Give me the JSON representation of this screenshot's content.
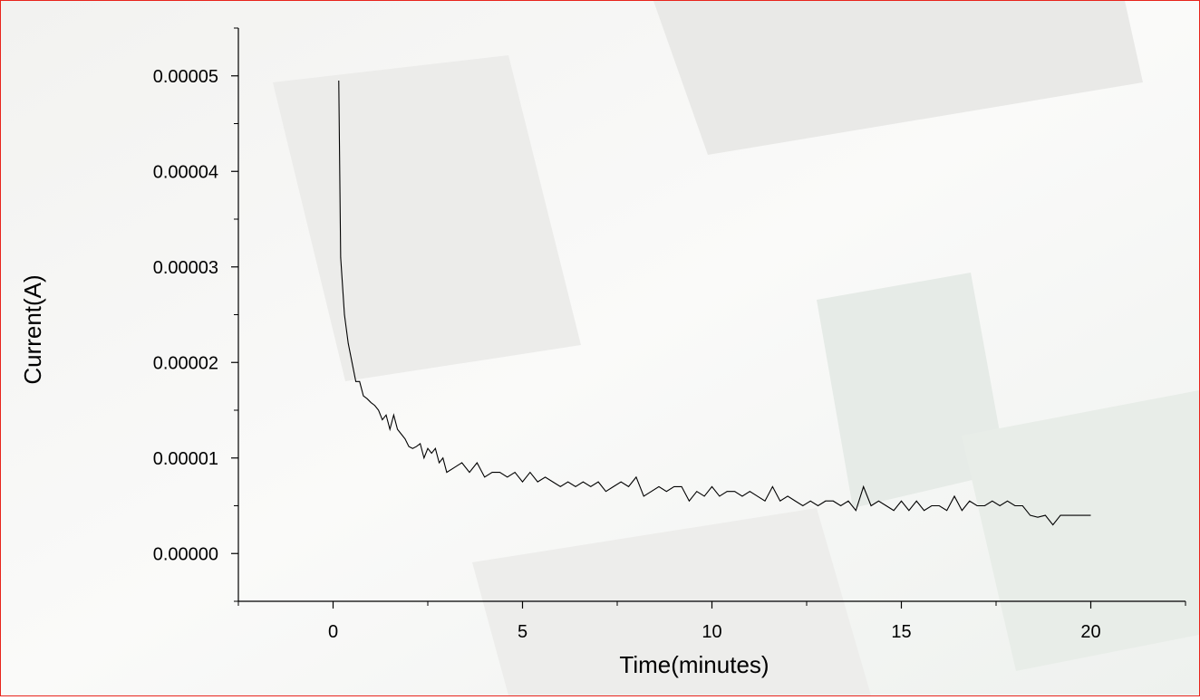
{
  "chart_data": {
    "type": "line",
    "x_label": "Time(minutes)",
    "y_label": "Current(A)",
    "xlim": [
      -2.5,
      22.5
    ],
    "xticks": [
      0,
      5,
      10,
      15,
      20
    ],
    "x_minor_ticks": [
      -2.5,
      2.5,
      7.5,
      12.5,
      17.5,
      22.5
    ],
    "ylim": [
      -5e-06,
      5.5e-05
    ],
    "yticks": [
      {
        "value": 0,
        "label": "0.00000"
      },
      {
        "value": 1e-05,
        "label": "0.00001"
      },
      {
        "value": 2e-05,
        "label": "0.00002"
      },
      {
        "value": 3e-05,
        "label": "0.00003"
      },
      {
        "value": 4e-05,
        "label": "0.00004"
      },
      {
        "value": 5e-05,
        "label": "0.00005"
      }
    ],
    "y_minor_ticks": [
      -5e-06,
      5e-06,
      1.5e-05,
      2.5e-05,
      3.5e-05,
      4.5e-05,
      5.5e-05
    ],
    "grid": false,
    "series": [
      {
        "color": "#000000",
        "x": [
          0.15,
          0.2,
          0.3,
          0.4,
          0.5,
          0.6,
          0.7,
          0.8,
          0.9,
          1.0,
          1.1,
          1.2,
          1.3,
          1.4,
          1.5,
          1.6,
          1.7,
          1.8,
          1.9,
          2.0,
          2.1,
          2.2,
          2.3,
          2.4,
          2.5,
          2.6,
          2.7,
          2.8,
          2.9,
          3.0,
          3.2,
          3.4,
          3.6,
          3.8,
          4.0,
          4.2,
          4.4,
          4.6,
          4.8,
          5.0,
          5.2,
          5.4,
          5.6,
          5.8,
          6.0,
          6.2,
          6.4,
          6.6,
          6.8,
          7.0,
          7.2,
          7.4,
          7.6,
          7.8,
          8.0,
          8.2,
          8.4,
          8.6,
          8.8,
          9.0,
          9.2,
          9.4,
          9.6,
          9.8,
          10.0,
          10.2,
          10.4,
          10.6,
          10.8,
          11.0,
          11.2,
          11.4,
          11.6,
          11.8,
          12.0,
          12.2,
          12.4,
          12.6,
          12.8,
          13.0,
          13.2,
          13.4,
          13.6,
          13.8,
          14.0,
          14.2,
          14.4,
          14.6,
          14.8,
          15.0,
          15.2,
          15.4,
          15.6,
          15.8,
          16.0,
          16.2,
          16.4,
          16.6,
          16.8,
          17.0,
          17.2,
          17.4,
          17.6,
          17.8,
          18.0,
          18.2,
          18.4,
          18.6,
          18.8,
          19.0,
          19.2,
          19.4,
          19.6,
          19.8,
          20.0
        ],
        "values": [
          4.95e-05,
          3.1e-05,
          2.5e-05,
          2.2e-05,
          2e-05,
          1.8e-05,
          1.8e-05,
          1.65e-05,
          1.62e-05,
          1.58e-05,
          1.55e-05,
          1.5e-05,
          1.4e-05,
          1.45e-05,
          1.3e-05,
          1.45e-05,
          1.3e-05,
          1.25e-05,
          1.2e-05,
          1.12e-05,
          1.1e-05,
          1.12e-05,
          1.15e-05,
          1e-05,
          1.1e-05,
          1.05e-05,
          1.1e-05,
          9.5e-06,
          1e-05,
          8.5e-06,
          9e-06,
          9.5e-06,
          8.5e-06,
          9.5e-06,
          8e-06,
          8.5e-06,
          8.5e-06,
          8e-06,
          8.5e-06,
          7.5e-06,
          8.5e-06,
          7.5e-06,
          8e-06,
          7.5e-06,
          7e-06,
          7.5e-06,
          7e-06,
          7.5e-06,
          7e-06,
          7.5e-06,
          6.5e-06,
          7e-06,
          7.5e-06,
          7e-06,
          8e-06,
          6e-06,
          6.5e-06,
          7e-06,
          6.5e-06,
          7e-06,
          7e-06,
          5.5e-06,
          6.5e-06,
          6e-06,
          7e-06,
          6e-06,
          6.5e-06,
          6.5e-06,
          6e-06,
          6.5e-06,
          6e-06,
          5.5e-06,
          7e-06,
          5.5e-06,
          6e-06,
          5.5e-06,
          5e-06,
          5.5e-06,
          5e-06,
          5.5e-06,
          5.5e-06,
          5e-06,
          5.5e-06,
          4.5e-06,
          7e-06,
          5e-06,
          5.5e-06,
          5e-06,
          4.5e-06,
          5.5e-06,
          4.5e-06,
          5.5e-06,
          4.5e-06,
          5e-06,
          5e-06,
          4.5e-06,
          6e-06,
          4.5e-06,
          5.5e-06,
          5e-06,
          5e-06,
          5.5e-06,
          5e-06,
          5.5e-06,
          5e-06,
          5e-06,
          4e-06,
          3.8e-06,
          4e-06,
          3e-06,
          4e-06,
          4e-06,
          4e-06,
          4e-06,
          4e-06
        ]
      }
    ]
  }
}
